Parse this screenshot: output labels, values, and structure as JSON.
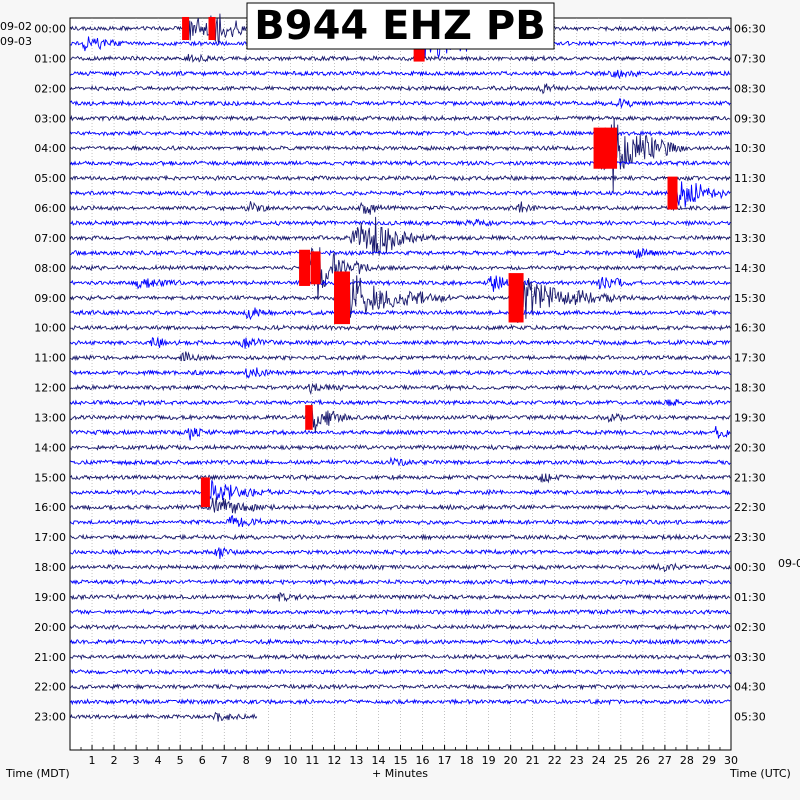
{
  "chart_data": {
    "type": "helicorder",
    "title": "B944 EHZ PB",
    "left_date_top": "09-02",
    "left_date_first_row": "09-03",
    "right_date_mid": "09-0",
    "left_hour_labels": [
      "00:00",
      "01:00",
      "02:00",
      "03:00",
      "04:00",
      "05:00",
      "06:00",
      "07:00",
      "08:00",
      "09:00",
      "10:00",
      "11:00",
      "12:00",
      "13:00",
      "14:00",
      "15:00",
      "16:00",
      "17:00",
      "18:00",
      "19:00",
      "20:00",
      "21:00",
      "22:00",
      "23:00"
    ],
    "right_hour_labels": [
      "06:30",
      "07:30",
      "08:30",
      "09:30",
      "10:30",
      "11:30",
      "12:30",
      "13:30",
      "14:30",
      "15:30",
      "16:30",
      "17:30",
      "18:30",
      "19:30",
      "20:30",
      "21:30",
      "22:30",
      "23:30",
      "00:30",
      "01:30",
      "02:30",
      "03:30",
      "04:30",
      "05:30"
    ],
    "x_ticks": [
      "1",
      "2",
      "3",
      "4",
      "5",
      "6",
      "7",
      "8",
      "9",
      "10",
      "11",
      "12",
      "13",
      "14",
      "15",
      "16",
      "17",
      "18",
      "19",
      "20",
      "21",
      "22",
      "23",
      "24",
      "25",
      "26",
      "27",
      "28",
      "29",
      "30"
    ],
    "xlim": [
      0,
      30
    ],
    "xlabel": "+ Minutes",
    "left_axis_title": "Time (MDT)",
    "right_axis_title": "Time (UTC)",
    "trace_colors": [
      "#1a1a6e",
      "#0000ff"
    ],
    "clip_color": "#ff0000",
    "rows_per_hour": 2,
    "total_rows": 47,
    "last_row_end_minute": 8.5,
    "events": [
      {
        "row": 0,
        "minute": 5.2,
        "amp": 1.4,
        "dur": 4.0,
        "clip": true
      },
      {
        "row": 0,
        "minute": 6.4,
        "amp": 1.4,
        "dur": 2.5,
        "clip": true
      },
      {
        "row": 1,
        "minute": 0.6,
        "amp": 0.9,
        "dur": 2.0
      },
      {
        "row": 1,
        "minute": 11.2,
        "amp": 0.7,
        "dur": 1.5
      },
      {
        "row": 1,
        "minute": 15.8,
        "amp": 2.2,
        "dur": 5.0,
        "clip": true
      },
      {
        "row": 2,
        "minute": 5.3,
        "amp": 0.5,
        "dur": 1.5
      },
      {
        "row": 3,
        "minute": 24.6,
        "amp": 0.6,
        "dur": 1.5
      },
      {
        "row": 4,
        "minute": 21.3,
        "amp": 0.5,
        "dur": 1.5
      },
      {
        "row": 5,
        "minute": 24.8,
        "amp": 0.5,
        "dur": 1.5
      },
      {
        "row": 8,
        "minute": 24.0,
        "amp": 2.5,
        "dur": 4.0,
        "clip": true
      },
      {
        "row": 8,
        "minute": 24.5,
        "amp": 2.5,
        "dur": 3.0,
        "clip": true
      },
      {
        "row": 11,
        "minute": 27.3,
        "amp": 2.0,
        "dur": 3.0,
        "clip": true
      },
      {
        "row": 12,
        "minute": 8.0,
        "amp": 0.6,
        "dur": 1.5
      },
      {
        "row": 12,
        "minute": 13.2,
        "amp": 0.8,
        "dur": 1.5
      },
      {
        "row": 12,
        "minute": 20.3,
        "amp": 0.5,
        "dur": 1.2
      },
      {
        "row": 13,
        "minute": 18.0,
        "amp": 0.5,
        "dur": 1.5
      },
      {
        "row": 14,
        "minute": 12.8,
        "amp": 1.8,
        "dur": 3.0
      },
      {
        "row": 14,
        "minute": 13.6,
        "amp": 1.5,
        "dur": 3.0
      },
      {
        "row": 15,
        "minute": 25.6,
        "amp": 0.5,
        "dur": 1.5
      },
      {
        "row": 16,
        "minute": 10.6,
        "amp": 2.2,
        "dur": 3.0,
        "clip": true
      },
      {
        "row": 16,
        "minute": 11.1,
        "amp": 2.0,
        "dur": 3.0,
        "clip": true
      },
      {
        "row": 17,
        "minute": 19.0,
        "amp": 1.0,
        "dur": 2.0
      },
      {
        "row": 17,
        "minute": 3.0,
        "amp": 0.8,
        "dur": 2.0
      },
      {
        "row": 17,
        "minute": 24.0,
        "amp": 0.8,
        "dur": 2.0
      },
      {
        "row": 18,
        "minute": 12.3,
        "amp": 3.2,
        "dur": 5.0,
        "clip": true
      },
      {
        "row": 18,
        "minute": 20.2,
        "amp": 3.0,
        "dur": 5.0,
        "clip": true
      },
      {
        "row": 19,
        "minute": 8.0,
        "amp": 0.7,
        "dur": 1.5
      },
      {
        "row": 21,
        "minute": 3.7,
        "amp": 0.6,
        "dur": 1.5
      },
      {
        "row": 21,
        "minute": 7.8,
        "amp": 0.7,
        "dur": 1.5
      },
      {
        "row": 22,
        "minute": 5.0,
        "amp": 0.5,
        "dur": 1.5
      },
      {
        "row": 23,
        "minute": 8.0,
        "amp": 0.6,
        "dur": 1.5
      },
      {
        "row": 24,
        "minute": 10.8,
        "amp": 0.5,
        "dur": 1.5
      },
      {
        "row": 25,
        "minute": 27.0,
        "amp": 0.4,
        "dur": 1.0
      },
      {
        "row": 26,
        "minute": 10.8,
        "amp": 1.5,
        "dur": 2.5,
        "clip": true
      },
      {
        "row": 26,
        "minute": 24.3,
        "amp": 0.5,
        "dur": 1.5
      },
      {
        "row": 27,
        "minute": 5.3,
        "amp": 0.6,
        "dur": 1.5
      },
      {
        "row": 27,
        "minute": 29.2,
        "amp": 0.7,
        "dur": 1.5
      },
      {
        "row": 29,
        "minute": 14.5,
        "amp": 0.5,
        "dur": 1.5
      },
      {
        "row": 30,
        "minute": 21.3,
        "amp": 0.6,
        "dur": 1.5
      },
      {
        "row": 31,
        "minute": 6.1,
        "amp": 1.8,
        "dur": 3.0,
        "clip": true
      },
      {
        "row": 32,
        "minute": 6.3,
        "amp": 1.2,
        "dur": 3.0
      },
      {
        "row": 33,
        "minute": 7.2,
        "amp": 0.8,
        "dur": 2.0
      },
      {
        "row": 35,
        "minute": 6.6,
        "amp": 0.6,
        "dur": 1.0
      },
      {
        "row": 36,
        "minute": 26.6,
        "amp": 0.5,
        "dur": 1.5
      },
      {
        "row": 38,
        "minute": 9.4,
        "amp": 0.4,
        "dur": 1.5
      },
      {
        "row": 46,
        "minute": 6.5,
        "amp": 0.4,
        "dur": 1.5
      }
    ]
  }
}
